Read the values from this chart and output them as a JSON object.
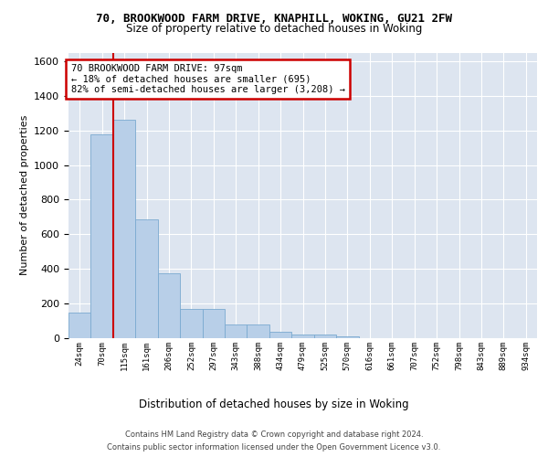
{
  "title1": "70, BROOKWOOD FARM DRIVE, KNAPHILL, WOKING, GU21 2FW",
  "title2": "Size of property relative to detached houses in Woking",
  "xlabel": "Distribution of detached houses by size in Woking",
  "ylabel": "Number of detached properties",
  "bin_labels": [
    "24sqm",
    "70sqm",
    "115sqm",
    "161sqm",
    "206sqm",
    "252sqm",
    "297sqm",
    "343sqm",
    "388sqm",
    "434sqm",
    "479sqm",
    "525sqm",
    "570sqm",
    "616sqm",
    "661sqm",
    "707sqm",
    "752sqm",
    "798sqm",
    "843sqm",
    "889sqm",
    "934sqm"
  ],
  "bar_heights": [
    150,
    1175,
    1260,
    685,
    375,
    170,
    170,
    80,
    80,
    35,
    20,
    20,
    10,
    0,
    0,
    0,
    0,
    0,
    0,
    0,
    0
  ],
  "bar_color": "#b8cfe8",
  "bar_edge_color": "#7aaad0",
  "property_line_color": "#cc0000",
  "property_line_x": 1.5,
  "annotation_text": "70 BROOKWOOD FARM DRIVE: 97sqm\n← 18% of detached houses are smaller (695)\n82% of semi-detached houses are larger (3,208) →",
  "annotation_box_edgecolor": "#cc0000",
  "annotation_box_facecolor": "white",
  "ylim": [
    0,
    1650
  ],
  "yticks": [
    0,
    200,
    400,
    600,
    800,
    1000,
    1200,
    1400,
    1600
  ],
  "background_color": "#dde5f0",
  "grid_color": "#ffffff",
  "footer1": "Contains HM Land Registry data © Crown copyright and database right 2024.",
  "footer2": "Contains public sector information licensed under the Open Government Licence v3.0."
}
